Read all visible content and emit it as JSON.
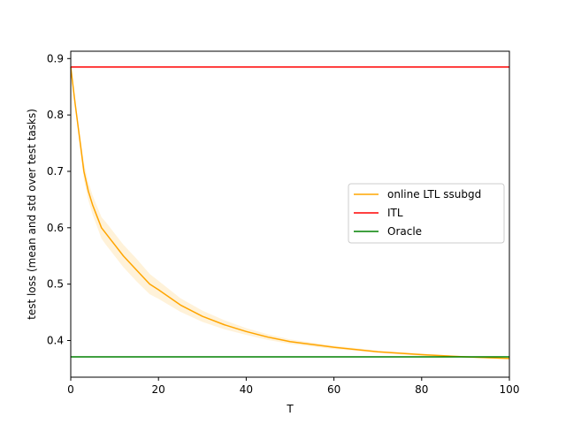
{
  "chart_data": {
    "type": "line",
    "title": "",
    "xlabel": "T",
    "ylabel": "test loss (mean and std over test tasks)",
    "xlim": [
      0,
      100
    ],
    "ylim": [
      0.335,
      0.913
    ],
    "xticks": [
      0,
      20,
      40,
      60,
      80,
      100
    ],
    "xtick_labels": [
      "0",
      "20",
      "40",
      "60",
      "80",
      "100"
    ],
    "yticks": [
      0.4,
      0.5,
      0.6,
      0.7,
      0.8,
      0.9
    ],
    "ytick_labels": [
      "0.4",
      "0.5",
      "0.6",
      "0.7",
      "0.8",
      "0.9"
    ],
    "grid": false,
    "legend_position": "center-right",
    "series": [
      {
        "name": "online LTL ssubgd",
        "color": "#FFA500",
        "x": [
          0,
          1,
          2,
          3,
          4,
          5,
          6,
          7,
          8,
          10,
          12,
          15,
          18,
          20,
          25,
          30,
          35,
          40,
          45,
          50,
          60,
          70,
          80,
          90,
          100
        ],
        "y": [
          0.885,
          0.82,
          0.76,
          0.7,
          0.665,
          0.64,
          0.62,
          0.6,
          0.59,
          0.57,
          0.55,
          0.525,
          0.5,
          0.49,
          0.463,
          0.443,
          0.428,
          0.416,
          0.406,
          0.398,
          0.388,
          0.38,
          0.375,
          0.371,
          0.368
        ],
        "std": [
          0.0,
          0.0,
          0.01,
          0.015,
          0.016,
          0.017,
          0.018,
          0.019,
          0.02,
          0.02,
          0.02,
          0.02,
          0.018,
          0.016,
          0.012,
          0.01,
          0.008,
          0.006,
          0.005,
          0.004,
          0.003,
          0.002,
          0.002,
          0.001,
          0.001
        ]
      },
      {
        "name": "ITL",
        "color": "#FF0000",
        "x": [
          0,
          100
        ],
        "y": [
          0.885,
          0.885
        ]
      },
      {
        "name": "Oracle",
        "color": "#008000",
        "x": [
          0,
          100
        ],
        "y": [
          0.371,
          0.371
        ]
      }
    ]
  }
}
